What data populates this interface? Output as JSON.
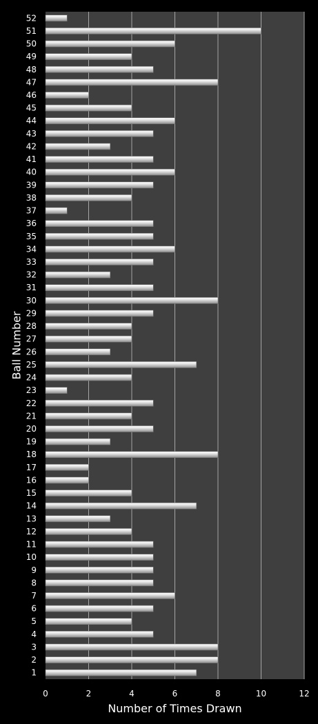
{
  "colors": {
    "background": "#000000",
    "plot_area": "#3f3f3f",
    "gridline": "#a6a6a6",
    "bar_light": "#ffffff",
    "bar_mid": "#e6e6e6",
    "bar_dark": "#8c8c8c",
    "text": "#ffffff"
  },
  "chart_data": {
    "type": "bar",
    "orientation": "horizontal",
    "title": "",
    "xlabel": "Number of Times Drawn",
    "ylabel": "Ball Number",
    "xlim": [
      0,
      12
    ],
    "xticks": [
      0,
      2,
      4,
      6,
      8,
      10,
      12
    ],
    "grid": "vertical gridlines",
    "legend": "none",
    "categories": [
      "1",
      "2",
      "3",
      "4",
      "5",
      "6",
      "7",
      "8",
      "9",
      "10",
      "11",
      "12",
      "13",
      "14",
      "15",
      "16",
      "17",
      "18",
      "19",
      "20",
      "21",
      "22",
      "23",
      "24",
      "25",
      "26",
      "27",
      "28",
      "29",
      "30",
      "31",
      "32",
      "33",
      "34",
      "35",
      "36",
      "37",
      "38",
      "39",
      "40",
      "41",
      "42",
      "43",
      "44",
      "45",
      "46",
      "47",
      "48",
      "49",
      "50",
      "51",
      "52"
    ],
    "values": [
      7,
      8,
      8,
      5,
      4,
      5,
      6,
      5,
      5,
      5,
      5,
      4,
      3,
      7,
      4,
      2,
      2,
      8,
      3,
      5,
      4,
      5,
      1,
      4,
      7,
      3,
      4,
      4,
      5,
      8,
      5,
      3,
      5,
      6,
      5,
      5,
      1,
      4,
      5,
      6,
      5,
      3,
      5,
      6,
      4,
      2,
      8,
      5,
      4,
      6,
      10,
      1
    ]
  }
}
